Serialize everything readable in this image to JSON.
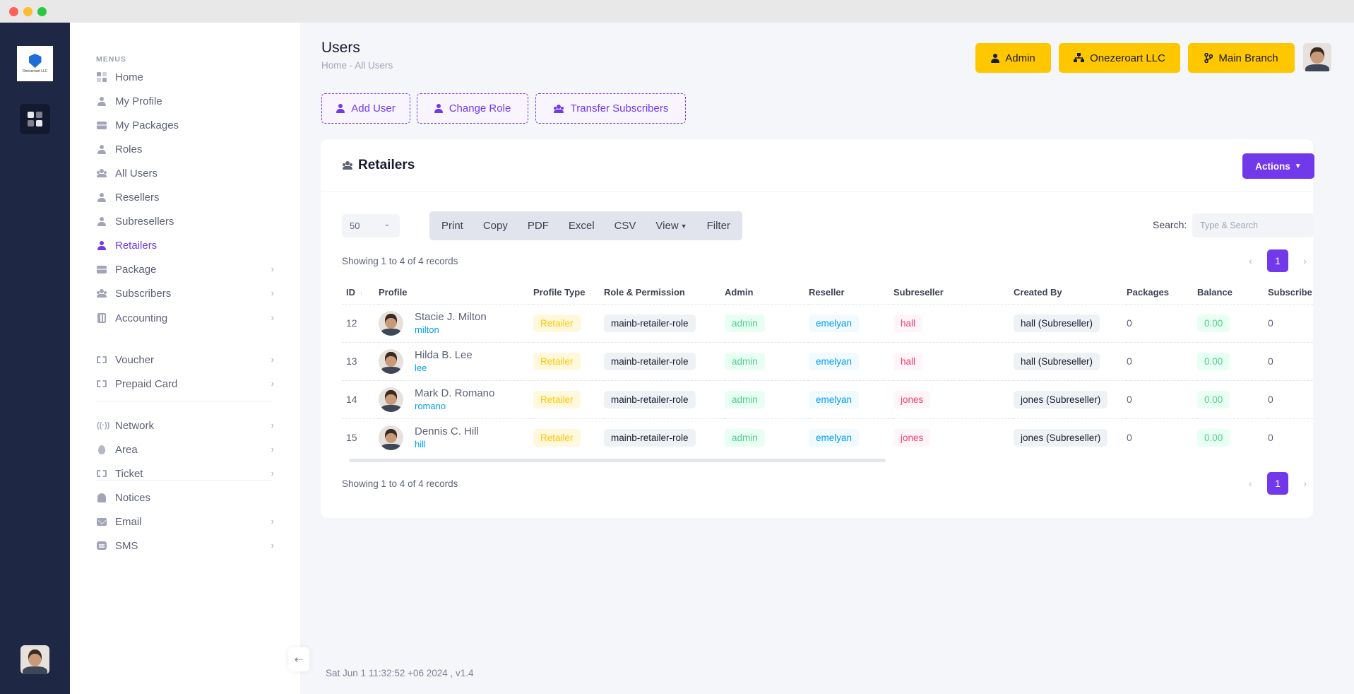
{
  "window": {
    "controls": [
      "close",
      "minimize",
      "maximize"
    ]
  },
  "rail": {
    "logo_text": "Onezeroart LLC",
    "apps_icon": "grid-icon"
  },
  "sidebar": {
    "menus_title": "MENUS",
    "items": [
      {
        "label": "Home",
        "icon": "dashboard-icon",
        "chevron": false
      },
      {
        "label": "My Profile",
        "icon": "person-icon",
        "chevron": false
      },
      {
        "label": "My Packages",
        "icon": "box-icon",
        "chevron": false
      },
      {
        "label": "Roles",
        "icon": "person-icon",
        "chevron": false
      },
      {
        "label": "All Users",
        "icon": "group-icon",
        "chevron": false
      },
      {
        "label": "Resellers",
        "icon": "person-icon",
        "chevron": false
      },
      {
        "label": "Subresellers",
        "icon": "person-icon",
        "chevron": false
      },
      {
        "label": "Retailers",
        "icon": "person-icon",
        "chevron": false,
        "active": true
      },
      {
        "label": "Package",
        "icon": "box-icon",
        "chevron": true
      },
      {
        "label": "Subscribers",
        "icon": "group-icon",
        "chevron": true
      },
      {
        "label": "Accounting",
        "icon": "calculator-icon",
        "chevron": true
      },
      {
        "label": "Voucher",
        "icon": "ticket-icon",
        "chevron": true
      },
      {
        "label": "Prepaid Card",
        "icon": "ticket-icon",
        "chevron": true
      },
      {
        "label": "Network",
        "icon": "antenna-icon",
        "chevron": true
      },
      {
        "label": "Area",
        "icon": "pin-icon",
        "chevron": true
      },
      {
        "label": "Ticket",
        "icon": "ticket-icon",
        "chevron": true
      },
      {
        "label": "Notices",
        "icon": "bell-icon",
        "chevron": false
      },
      {
        "label": "Email",
        "icon": "mail-icon",
        "chevron": true
      },
      {
        "label": "SMS",
        "icon": "chat-icon",
        "chevron": true
      }
    ]
  },
  "header": {
    "title": "Users",
    "breadcrumb": "Home  -  All Users",
    "buttons": {
      "admin": "Admin",
      "company": "Onezeroart LLC",
      "branch": "Main Branch"
    }
  },
  "toolbar": {
    "add_user": "Add User",
    "change_role": "Change Role",
    "transfer": "Transfer Subscribers"
  },
  "card": {
    "title": "Retailers",
    "actions_label": "Actions",
    "page_length": "50",
    "export_buttons": [
      "Print",
      "Copy",
      "PDF",
      "Excel",
      "CSV",
      "View",
      "Filter"
    ],
    "search_label": "Search:",
    "search_placeholder": "Type & Search",
    "info": "Showing 1 to 4 of 4 records",
    "current_page": "1",
    "columns": [
      "ID",
      "Profile",
      "Profile Type",
      "Role & Permission",
      "Admin",
      "Reseller",
      "Subreseller",
      "Created By",
      "Packages",
      "Balance",
      "Subscribe"
    ],
    "rows": [
      {
        "id": "12",
        "name": "Stacie J. Milton",
        "username": "milton",
        "type": "Retailer",
        "role": "mainb-retailer-role",
        "admin": "admin",
        "reseller": "emelyan",
        "subreseller": "hall",
        "created_by": "hall (Subreseller)",
        "packages": "0",
        "balance": "0.00",
        "subscribers": "0"
      },
      {
        "id": "13",
        "name": "Hilda B. Lee",
        "username": "lee",
        "type": "Retailer",
        "role": "mainb-retailer-role",
        "admin": "admin",
        "reseller": "emelyan",
        "subreseller": "hall",
        "created_by": "hall (Subreseller)",
        "packages": "0",
        "balance": "0.00",
        "subscribers": "0"
      },
      {
        "id": "14",
        "name": "Mark D. Romano",
        "username": "romano",
        "type": "Retailer",
        "role": "mainb-retailer-role",
        "admin": "admin",
        "reseller": "emelyan",
        "subreseller": "jones",
        "created_by": "jones (Subreseller)",
        "packages": "0",
        "balance": "0.00",
        "subscribers": "0"
      },
      {
        "id": "15",
        "name": "Dennis C. Hill",
        "username": "hill",
        "type": "Retailer",
        "role": "mainb-retailer-role",
        "admin": "admin",
        "reseller": "emelyan",
        "subreseller": "jones",
        "created_by": "jones (Subreseller)",
        "packages": "0",
        "balance": "0.00",
        "subscribers": "0"
      }
    ]
  },
  "footer": {
    "text": "Sat Jun 1 11:32:52 +06 2024 ,    v1.4"
  },
  "colors": {
    "rail": "#1e2844",
    "accent": "#7239ea",
    "yellow": "#ffc700"
  }
}
